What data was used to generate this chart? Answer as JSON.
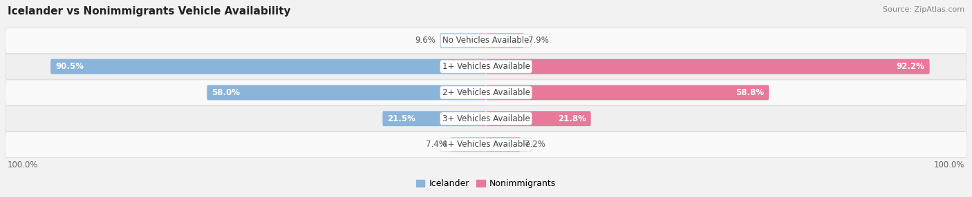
{
  "title": "Icelander vs Nonimmigrants Vehicle Availability",
  "source": "Source: ZipAtlas.com",
  "categories": [
    "No Vehicles Available",
    "1+ Vehicles Available",
    "2+ Vehicles Available",
    "3+ Vehicles Available",
    "4+ Vehicles Available"
  ],
  "icelander_values": [
    9.6,
    90.5,
    58.0,
    21.5,
    7.4
  ],
  "nonimmigrant_values": [
    7.9,
    92.2,
    58.8,
    21.8,
    7.2
  ],
  "icelander_color": "#8ab4d9",
  "icelander_color_light": "#b8d3e8",
  "nonimmigrant_color": "#e8799a",
  "nonimmigrant_color_light": "#f0aabe",
  "bg_color": "#f2f2f2",
  "row_bg_light": "#f9f9f9",
  "row_bg_dark": "#efefef",
  "bar_height": 0.58,
  "max_value": 100.0,
  "title_fontsize": 11,
  "label_fontsize": 8.5,
  "source_fontsize": 8,
  "legend_fontsize": 9,
  "axis_label_fontsize": 8.5,
  "inside_text_threshold": 15
}
